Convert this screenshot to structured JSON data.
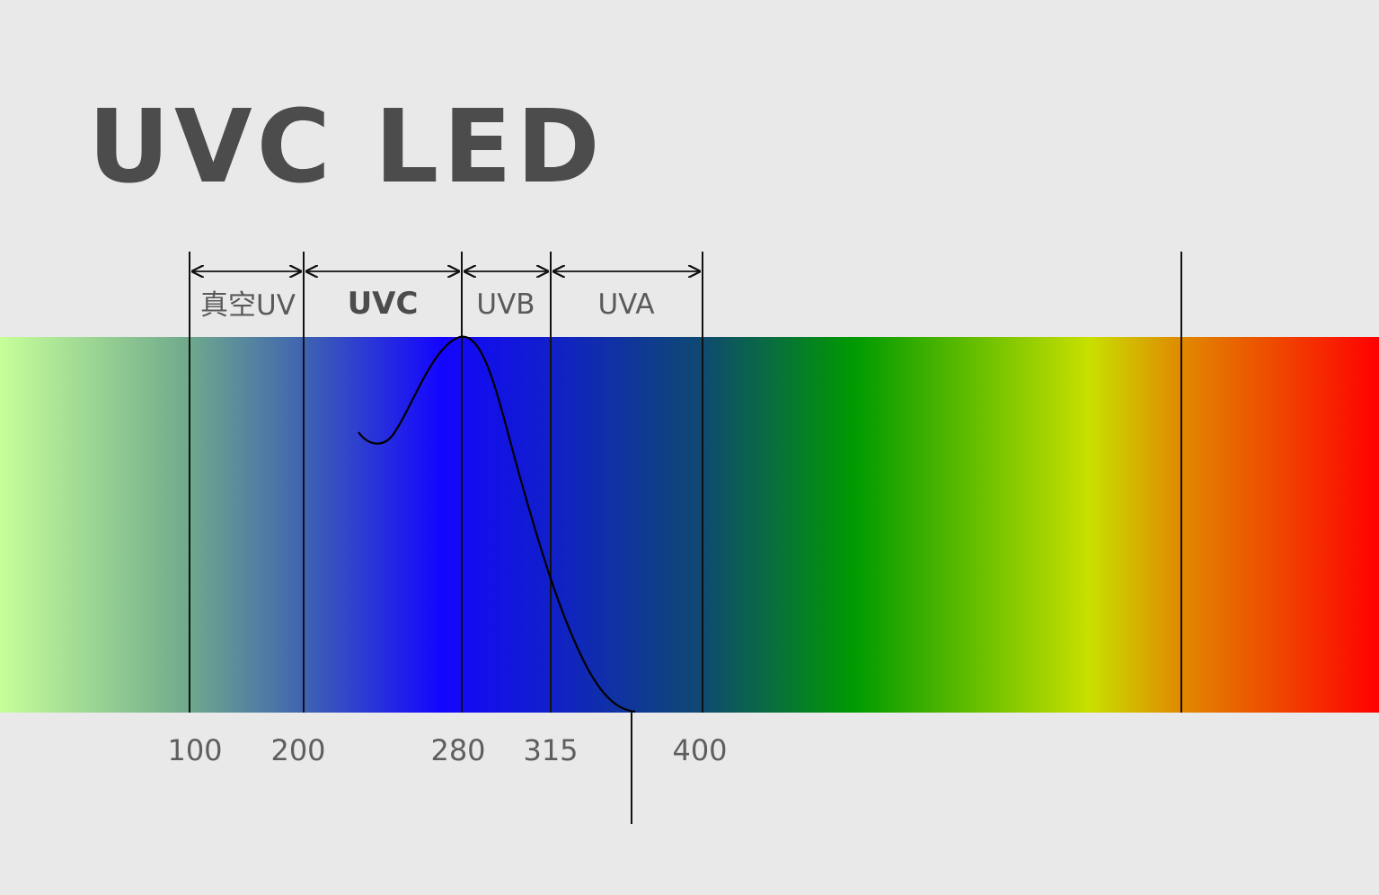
{
  "title": "UVC LED",
  "bands": [
    {
      "label": "真空UV"
    },
    {
      "label": "UVC"
    },
    {
      "label": "UVB"
    },
    {
      "label": "UVA"
    }
  ],
  "ticks": [
    "100",
    "200",
    "280",
    "315",
    "400"
  ],
  "colors": {
    "background": "#e9e9e9",
    "title": "#4c4c4c",
    "spectrum": [
      "#c6ff9a",
      "#6fa98c",
      "#3f64b0",
      "#1405ff",
      "#0f3f8c",
      "#009a00",
      "#c8e000",
      "#e08a00",
      "#ff0000"
    ]
  }
}
